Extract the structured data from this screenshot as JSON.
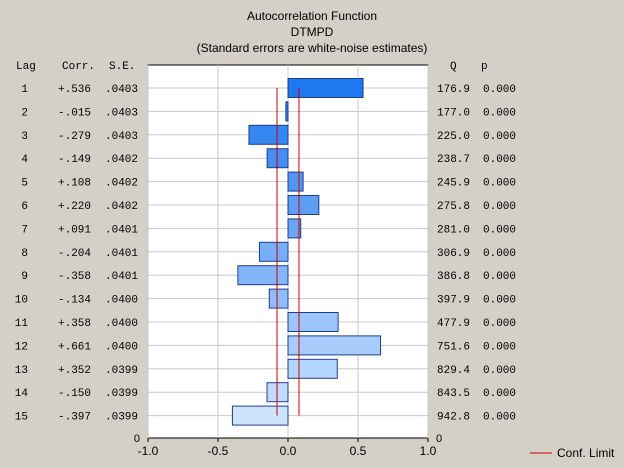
{
  "title": "Autocorrelation Function",
  "subtitle": "DTMPD",
  "note": "(Standard errors are white-noise estimates)",
  "headers": {
    "lag": "Lag",
    "corr": "Corr.",
    "se": "S.E.",
    "q": "Q",
    "p": "p"
  },
  "legend": {
    "label": "Conf. Limit",
    "color": "#cc0000"
  },
  "chart_data": {
    "type": "bar",
    "orientation": "horizontal",
    "title": "Autocorrelation Function",
    "subtitle": "DTMPD",
    "xlim": [
      -1.0,
      1.0
    ],
    "x_ticks": [
      "-1.0",
      "-0.5",
      "0.0",
      "0.5",
      "1.0"
    ],
    "conf_limit": 0.0784,
    "zero_label": "0",
    "rows": [
      {
        "lag": "1",
        "corr_text": "+.536",
        "corr": 0.536,
        "se": ".0403",
        "q": "176.9",
        "p": "0.000"
      },
      {
        "lag": "2",
        "corr_text": "-.015",
        "corr": -0.015,
        "se": ".0403",
        "q": "177.0",
        "p": "0.000"
      },
      {
        "lag": "3",
        "corr_text": "-.279",
        "corr": -0.279,
        "se": ".0403",
        "q": "225.0",
        "p": "0.000"
      },
      {
        "lag": "4",
        "corr_text": "-.149",
        "corr": -0.149,
        "se": ".0402",
        "q": "238.7",
        "p": "0.000"
      },
      {
        "lag": "5",
        "corr_text": "+.108",
        "corr": 0.108,
        "se": ".0402",
        "q": "245.9",
        "p": "0.000"
      },
      {
        "lag": "6",
        "corr_text": "+.220",
        "corr": 0.22,
        "se": ".0402",
        "q": "275.8",
        "p": "0.000"
      },
      {
        "lag": "7",
        "corr_text": "+.091",
        "corr": 0.091,
        "se": ".0401",
        "q": "281.0",
        "p": "0.000"
      },
      {
        "lag": "8",
        "corr_text": "-.204",
        "corr": -0.204,
        "se": ".0401",
        "q": "306.9",
        "p": "0.000"
      },
      {
        "lag": "9",
        "corr_text": "-.358",
        "corr": -0.358,
        "se": ".0401",
        "q": "386.8",
        "p": "0.000"
      },
      {
        "lag": "10",
        "corr_text": "-.134",
        "corr": -0.134,
        "se": ".0400",
        "q": "397.9",
        "p": "0.000"
      },
      {
        "lag": "11",
        "corr_text": "+.358",
        "corr": 0.358,
        "se": ".0400",
        "q": "477.9",
        "p": "0.000"
      },
      {
        "lag": "12",
        "corr_text": "+.661",
        "corr": 0.661,
        "se": ".0400",
        "q": "751.6",
        "p": "0.000"
      },
      {
        "lag": "13",
        "corr_text": "+.352",
        "corr": 0.352,
        "se": ".0399",
        "q": "829.4",
        "p": "0.000"
      },
      {
        "lag": "14",
        "corr_text": "-.150",
        "corr": -0.15,
        "se": ".0399",
        "q": "843.5",
        "p": "0.000"
      },
      {
        "lag": "15",
        "corr_text": "-.397",
        "corr": -0.397,
        "se": ".0399",
        "q": "942.8",
        "p": "0.000"
      }
    ]
  }
}
